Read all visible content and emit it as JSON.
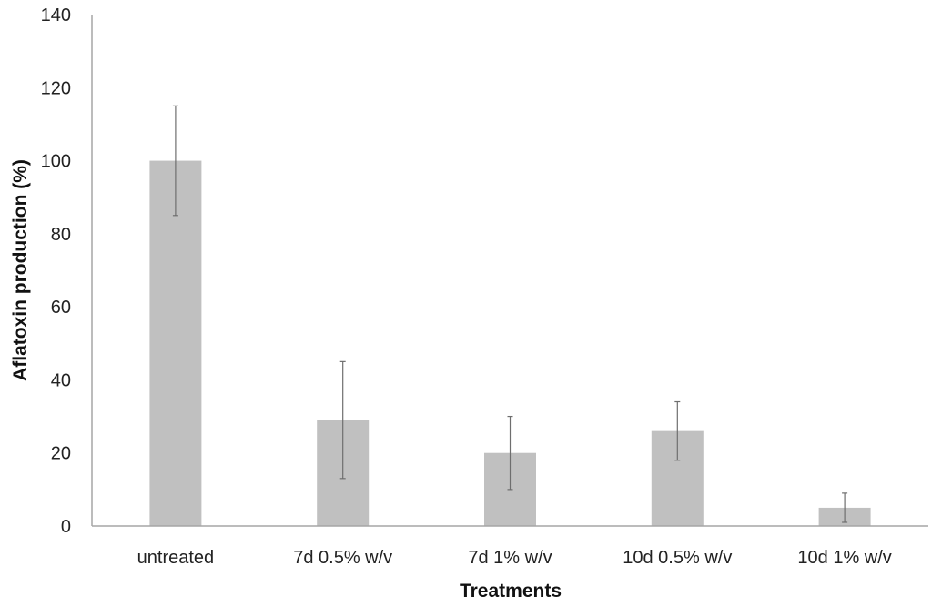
{
  "chart_data": {
    "type": "bar",
    "title": "",
    "xlabel": "Treatments",
    "ylabel": "Aflatoxin production (%)",
    "ylim": [
      0,
      140
    ],
    "yticks": [
      0,
      20,
      40,
      60,
      80,
      100,
      120,
      140
    ],
    "categories": [
      "untreated",
      "7d 0.5% w/v",
      "7d 1% w/v",
      "10d 0.5% w/v",
      "10d 1% w/v"
    ],
    "values": [
      100,
      29,
      20,
      26,
      5
    ],
    "errors": [
      15,
      16,
      10,
      8,
      4
    ],
    "grid": false,
    "legend": "none",
    "colors": {
      "bar": "#c0c0c0",
      "error_bar": "#6e6e6e",
      "axis": "#a6a6a6"
    }
  }
}
